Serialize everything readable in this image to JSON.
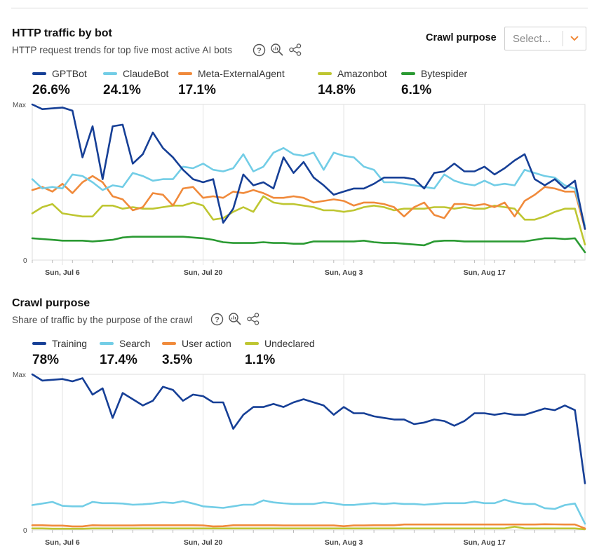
{
  "filter": {
    "label": "Crawl purpose",
    "placeholder": "Select..."
  },
  "chart_data": [
    {
      "type": "line",
      "title": "HTTP traffic by bot",
      "subtitle": "HTTP request trends for top five most active AI bots",
      "y_ticks": [
        "Max",
        "0"
      ],
      "x_ticks": [
        "Sun, Jul 6",
        "Sun, Jul 20",
        "Sun, Aug 3",
        "Sun, Aug 17"
      ],
      "x_tick_index": [
        3,
        17,
        31,
        45
      ],
      "ylim": [
        0,
        100
      ],
      "legend_position": "top-left",
      "grid": "vertical",
      "series": [
        {
          "name": "GPTBot",
          "share": "26.6%",
          "color": "#163f96",
          "values": [
            100,
            97,
            97.5,
            98,
            96,
            66,
            86,
            52,
            86,
            87,
            62,
            68,
            82,
            72,
            66,
            58,
            52,
            50,
            52,
            24,
            33,
            55,
            48,
            50,
            46,
            66,
            56,
            63,
            53,
            48,
            42,
            44,
            46,
            46,
            49,
            53,
            53,
            53,
            52,
            46,
            56,
            57,
            62,
            57,
            57,
            60,
            55,
            59,
            64,
            68,
            52,
            48,
            52,
            46,
            51,
            20
          ]
        },
        {
          "name": "ClaudeBot",
          "share": "24.1%",
          "color": "#72cde6",
          "values": [
            52,
            46,
            47,
            46,
            55,
            54,
            50,
            45,
            48,
            47,
            56,
            54,
            51,
            52,
            52,
            60,
            59,
            62,
            58,
            57,
            59,
            68,
            57,
            60,
            69,
            72,
            68,
            67,
            69,
            58,
            69,
            67,
            66,
            60,
            58,
            50,
            50,
            49,
            48,
            47,
            46,
            55,
            51,
            49,
            48,
            51,
            48,
            49,
            48,
            58,
            56,
            54,
            53,
            48,
            46,
            22
          ]
        },
        {
          "name": "Meta-ExternalAgent",
          "share": "17.1%",
          "color": "#f08a3b",
          "values": [
            45,
            47,
            44,
            49,
            43,
            50,
            54,
            50,
            41,
            39,
            32,
            34,
            43,
            42,
            35,
            46,
            47,
            40,
            41,
            40,
            44,
            43,
            45,
            43,
            40,
            40,
            41,
            40,
            37,
            38,
            39,
            38,
            35,
            37,
            37,
            36,
            34,
            28,
            34,
            37,
            29,
            27,
            36,
            36,
            35,
            36,
            34,
            37,
            28,
            38,
            42,
            47,
            46,
            44,
            44,
            20
          ]
        },
        {
          "name": "Amazonbot",
          "share": "14.8%",
          "color": "#bec631",
          "values": [
            30,
            34,
            36,
            30,
            29,
            28,
            28,
            35,
            35,
            33,
            34,
            33,
            33,
            34,
            35,
            35,
            37,
            35,
            26,
            27,
            31,
            34,
            31,
            41,
            37,
            36,
            36,
            35,
            34,
            32,
            32,
            31,
            32,
            34,
            35,
            34,
            32,
            33,
            33,
            33,
            34,
            34,
            33,
            34,
            33,
            33,
            35,
            34,
            33,
            26,
            26,
            28,
            31,
            33,
            33,
            10
          ]
        },
        {
          "name": "Bytespider",
          "share": "6.1%",
          "color": "#2a9a32",
          "values": [
            14,
            13.5,
            13,
            12.5,
            12.5,
            12.5,
            12,
            12.5,
            13,
            14.5,
            15,
            15,
            15,
            15,
            15,
            15,
            14.5,
            14,
            13,
            11.5,
            11,
            11,
            11,
            11.5,
            11,
            11,
            10.5,
            10.5,
            12,
            12,
            12,
            12,
            12,
            12.5,
            11.5,
            11,
            11,
            10.5,
            10,
            9.5,
            12,
            12.5,
            12.5,
            12,
            12,
            12,
            12,
            12,
            12,
            12,
            13,
            14,
            14,
            13.5,
            14,
            5
          ]
        }
      ]
    },
    {
      "type": "line",
      "title": "Crawl purpose",
      "subtitle": "Share of traffic by the purpose of the crawl",
      "y_ticks": [
        "Max",
        "0"
      ],
      "x_ticks": [
        "Sun, Jul 6",
        "Sun, Jul 20",
        "Sun, Aug 3",
        "Sun, Aug 17"
      ],
      "x_tick_index": [
        3,
        17,
        31,
        45
      ],
      "ylim": [
        0,
        100
      ],
      "legend_position": "top-left",
      "grid": "vertical",
      "series": [
        {
          "name": "Training",
          "share": "78%",
          "color": "#163f96",
          "values": [
            100,
            96,
            96.5,
            97,
            95.5,
            97.5,
            87,
            91,
            72,
            88,
            84,
            80,
            83,
            92,
            90,
            83,
            87,
            86,
            82,
            82,
            65,
            74,
            79,
            79,
            81,
            79,
            82,
            84,
            82,
            80,
            74,
            79,
            75,
            75,
            73,
            72,
            71,
            71,
            68,
            69,
            71,
            70,
            67,
            70,
            75,
            75,
            74,
            75,
            74,
            74,
            76,
            78,
            77,
            80,
            77,
            30
          ]
        },
        {
          "name": "Search",
          "share": "17.4%",
          "color": "#72cde6",
          "values": [
            16,
            17,
            18,
            15.5,
            15.2,
            15.2,
            18,
            17.2,
            17.2,
            17,
            16.2,
            16.5,
            17,
            17.8,
            17.3,
            18.5,
            17,
            15.2,
            14.7,
            14.2,
            15.2,
            16.2,
            16.2,
            19,
            17.7,
            17.1,
            16.7,
            16.7,
            16.7,
            17.7,
            17.1,
            16.1,
            16.1,
            16.7,
            17.2,
            16.7,
            17.2,
            16.7,
            16.7,
            16.2,
            16.7,
            17.2,
            17.2,
            17.2,
            18.2,
            17.2,
            17.2,
            19.4,
            17.7,
            16.7,
            16.7,
            14,
            13.5,
            16,
            17,
            4
          ]
        },
        {
          "name": "User action",
          "share": "3.5%",
          "color": "#f08a3b",
          "values": [
            3,
            3,
            2.8,
            2.8,
            2.3,
            2.3,
            3,
            2.9,
            2.9,
            2.9,
            2.9,
            3,
            3,
            3,
            3,
            3,
            3,
            2.9,
            2.3,
            2.4,
            3,
            3,
            3,
            3,
            3,
            2.9,
            2.9,
            2.9,
            2.9,
            2.9,
            2.9,
            2.4,
            2.9,
            2.9,
            3,
            3,
            3,
            3.5,
            3.5,
            3.5,
            3.5,
            3.5,
            3.5,
            3.5,
            3.5,
            3.5,
            3.5,
            3.5,
            3.5,
            3.5,
            3.5,
            3.7,
            3.6,
            3.5,
            3.5,
            1
          ]
        },
        {
          "name": "Undeclared",
          "share": "1.1%",
          "color": "#bec631",
          "values": [
            1,
            1,
            0.8,
            0.8,
            0.8,
            0.8,
            1,
            1,
            1,
            1,
            1,
            1,
            1,
            1,
            1,
            1,
            1,
            1,
            1,
            1,
            1,
            1,
            1,
            1,
            1,
            1,
            1,
            1,
            1,
            1,
            1,
            1,
            1,
            1,
            1,
            1,
            1,
            1,
            1,
            1,
            1,
            1,
            1,
            1,
            1,
            1,
            1,
            1,
            2.1,
            1,
            1,
            1,
            1,
            1,
            1,
            0.5
          ]
        }
      ]
    }
  ]
}
